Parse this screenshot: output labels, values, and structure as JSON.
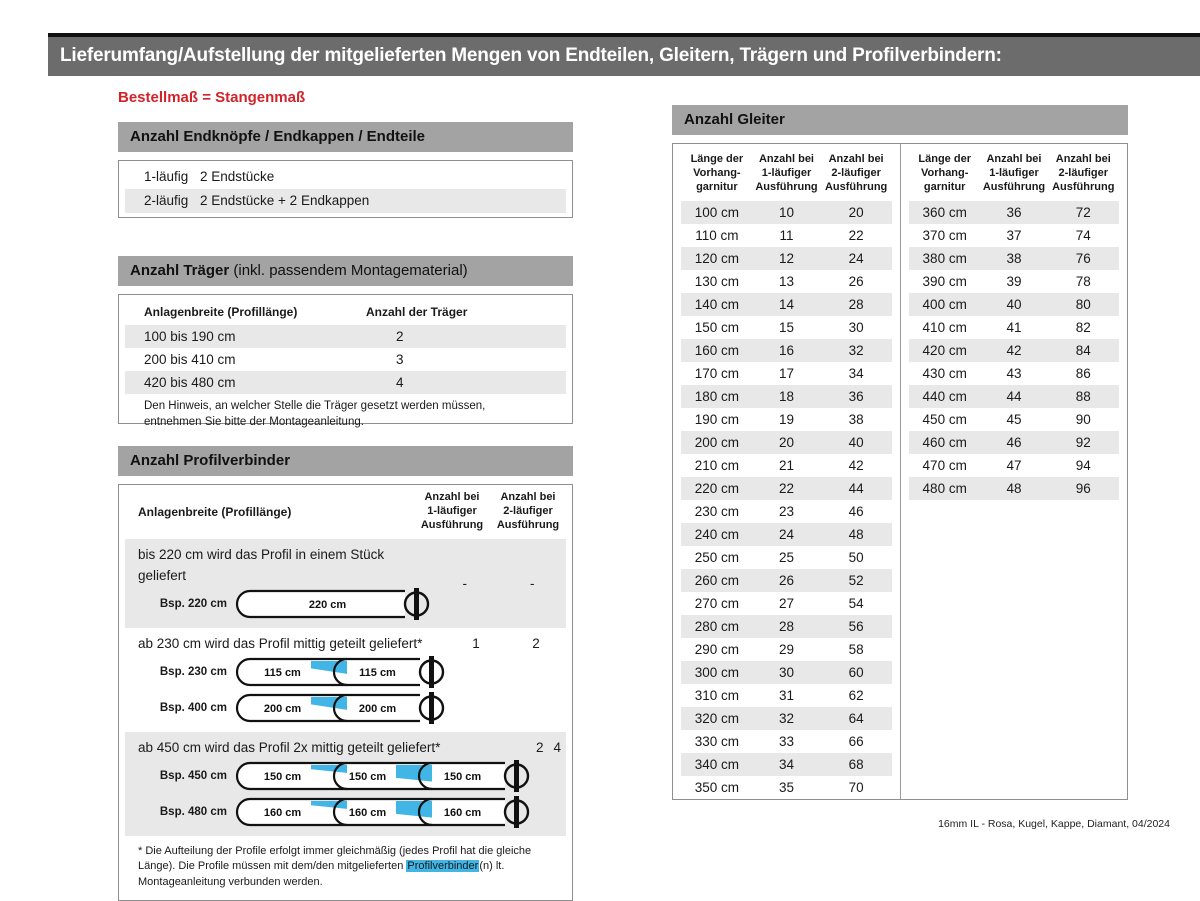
{
  "page": {
    "title": "Lieferumfang/Aufstellung der mitgelieferten Mengen von Endteilen, Gleitern, Trägern und Profilverbindern:",
    "subtitle": "Bestellmaß = Stangenmaß",
    "footer": "16mm IL - Rosa, Kugel, Kappe, Diamant, 04/2024"
  },
  "colors": {
    "accent_red": "#d2232a",
    "highlight_blue": "#41b6e6",
    "titlebar_gray": "#6c6c6c",
    "section_gray": "#a3a3a3",
    "stripe_gray": "#e8e8e8"
  },
  "endteile": {
    "heading": "Anzahl Endknöpfe / Endkappen / Endteile",
    "rows": [
      {
        "label": "1-läufig",
        "value": "2 Endstücke"
      },
      {
        "label": "2-läufig",
        "value": "2 Endstücke + 2 Endkappen"
      }
    ]
  },
  "traeger": {
    "heading_bold": "Anzahl Träger",
    "heading_rest": " (inkl. passendem Montagematerial)",
    "col1": "Anlagenbreite (Profillänge)",
    "col2": "Anzahl der Träger",
    "rows": [
      {
        "range": "100 bis 190 cm",
        "count": "2"
      },
      {
        "range": "200 bis 410 cm",
        "count": "3"
      },
      {
        "range": "420 bis 480 cm",
        "count": "4"
      }
    ],
    "note": "Den Hinweis, an welcher Stelle die Träger gesetzt werden müssen, entnehmen Sie bitte der Montageanleitung."
  },
  "profilverbinder": {
    "heading": "Anzahl Profilverbinder",
    "col1": "Anlagenbreite (Profillänge)",
    "col2": "Anzahl bei\n1-läufiger\nAusführung",
    "col3": "Anzahl bei\n2-läufiger\nAusführung",
    "groups": [
      {
        "text": "bis 220 cm wird das Profil in einem Stück geliefert",
        "val1": "-",
        "val2": "-",
        "examples": [
          {
            "label": "Bsp. 220 cm",
            "segments": [
              "220 cm"
            ]
          }
        ]
      },
      {
        "text": "ab 230 cm wird das Profil mittig geteilt geliefert*",
        "val1": "1",
        "val2": "2",
        "examples": [
          {
            "label": "Bsp. 230 cm",
            "segments": [
              "115 cm",
              "115 cm"
            ]
          },
          {
            "label": "Bsp. 400 cm",
            "segments": [
              "200 cm",
              "200 cm"
            ]
          }
        ]
      },
      {
        "text": "ab 450 cm wird das Profil 2x mittig geteilt geliefert*",
        "val1": "2",
        "val2": "4",
        "examples": [
          {
            "label": "Bsp. 450 cm",
            "segments": [
              "150 cm",
              "150 cm",
              "150 cm"
            ]
          },
          {
            "label": "Bsp. 480 cm",
            "segments": [
              "160 cm",
              "160 cm",
              "160 cm"
            ]
          }
        ]
      }
    ],
    "footnote_pre": "* Die Aufteilung der Profile erfolgt immer gleichmäßig (jedes Profil hat die gleiche Länge). Die Profile müssen mit dem/den mitgelieferten ",
    "footnote_highlight": "Profilverbinder",
    "footnote_post": "(n) lt. Montageanleitung verbunden werden."
  },
  "gleiter": {
    "heading": "Anzahl Gleiter",
    "col_headers": [
      "Länge der\nVorhang-\ngarnitur",
      "Anzahl bei\n1-läufiger\nAusführung",
      "Anzahl bei\n2-läufiger\nAusführung"
    ],
    "left_rows": [
      [
        "100 cm",
        "10",
        "20"
      ],
      [
        "110 cm",
        "11",
        "22"
      ],
      [
        "120 cm",
        "12",
        "24"
      ],
      [
        "130 cm",
        "13",
        "26"
      ],
      [
        "140 cm",
        "14",
        "28"
      ],
      [
        "150 cm",
        "15",
        "30"
      ],
      [
        "160 cm",
        "16",
        "32"
      ],
      [
        "170 cm",
        "17",
        "34"
      ],
      [
        "180 cm",
        "18",
        "36"
      ],
      [
        "190 cm",
        "19",
        "38"
      ],
      [
        "200 cm",
        "20",
        "40"
      ],
      [
        "210 cm",
        "21",
        "42"
      ],
      [
        "220 cm",
        "22",
        "44"
      ],
      [
        "230 cm",
        "23",
        "46"
      ],
      [
        "240 cm",
        "24",
        "48"
      ],
      [
        "250 cm",
        "25",
        "50"
      ],
      [
        "260 cm",
        "26",
        "52"
      ],
      [
        "270 cm",
        "27",
        "54"
      ],
      [
        "280 cm",
        "28",
        "56"
      ],
      [
        "290 cm",
        "29",
        "58"
      ],
      [
        "300 cm",
        "30",
        "60"
      ],
      [
        "310 cm",
        "31",
        "62"
      ],
      [
        "320 cm",
        "32",
        "64"
      ],
      [
        "330 cm",
        "33",
        "66"
      ],
      [
        "340 cm",
        "34",
        "68"
      ],
      [
        "350 cm",
        "35",
        "70"
      ]
    ],
    "right_rows": [
      [
        "360 cm",
        "36",
        "72"
      ],
      [
        "370 cm",
        "37",
        "74"
      ],
      [
        "380 cm",
        "38",
        "76"
      ],
      [
        "390 cm",
        "39",
        "78"
      ],
      [
        "400 cm",
        "40",
        "80"
      ],
      [
        "410 cm",
        "41",
        "82"
      ],
      [
        "420 cm",
        "42",
        "84"
      ],
      [
        "430 cm",
        "43",
        "86"
      ],
      [
        "440 cm",
        "44",
        "88"
      ],
      [
        "450 cm",
        "45",
        "90"
      ],
      [
        "460 cm",
        "46",
        "92"
      ],
      [
        "470 cm",
        "47",
        "94"
      ],
      [
        "480 cm",
        "48",
        "96"
      ]
    ]
  }
}
